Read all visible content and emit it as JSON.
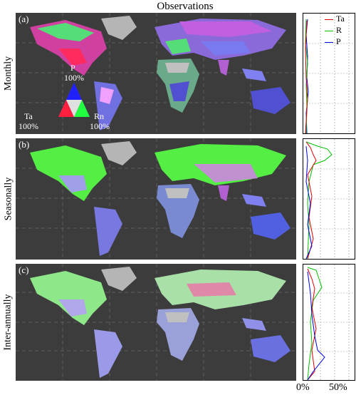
{
  "title": "Observations",
  "panels": [
    {
      "label": "(a)",
      "row": "Monthly"
    },
    {
      "label": "(b)",
      "row": "Seasonally"
    },
    {
      "label": "(c)",
      "row": "Inter-annually"
    }
  ],
  "ternary": {
    "top_label": "P",
    "top_pct": "100%",
    "left_label": "Ta",
    "left_pct": "100%",
    "right_label": "Rn",
    "right_pct": "100%"
  },
  "legend": [
    {
      "name": "Ta",
      "color": "#e00000"
    },
    {
      "name": "R",
      "color": "#00c000"
    },
    {
      "name": "P",
      "color": "#0000e0"
    }
  ],
  "x_ticks": [
    "0%",
    "50%"
  ]
}
